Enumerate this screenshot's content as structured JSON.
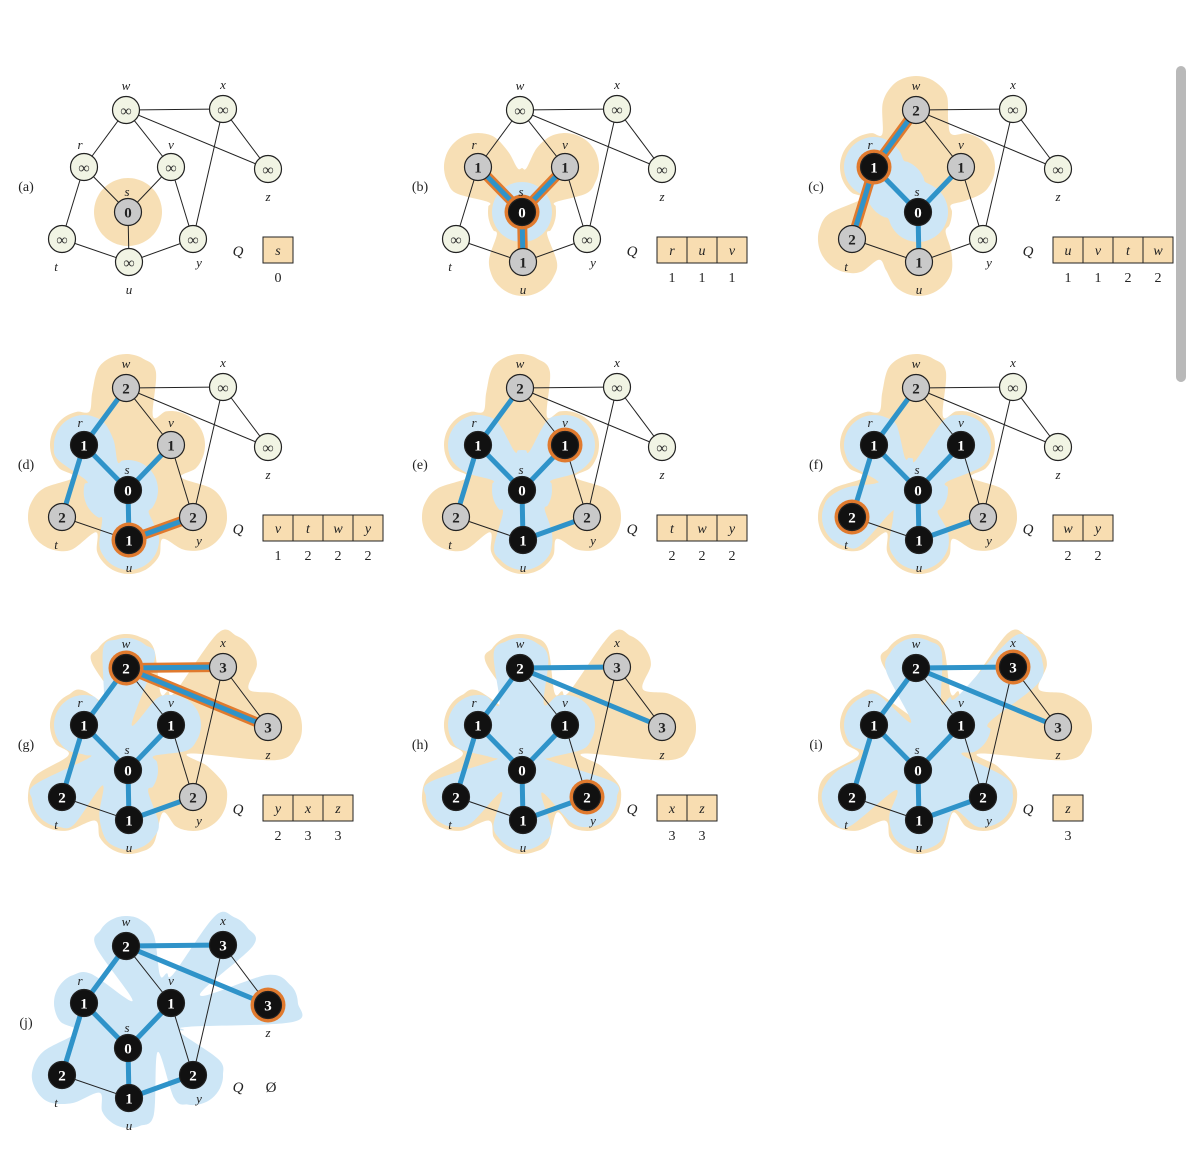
{
  "figure": {
    "queue_label": "Q",
    "empty_queue_symbol": "Ø",
    "colors": {
      "undiscovered_fill": "#f1f4e4",
      "frontier_fill": "#c9c9c9",
      "finished_fill": "#111111",
      "visited_region": "#cde6f6",
      "frontier_region": "#f7dfb5",
      "tree_edge": "#2f93c9",
      "current_edge": "#e07a2e",
      "queue_box": "#f8ddb1"
    },
    "vertices": [
      {
        "id": "w",
        "label": "w"
      },
      {
        "id": "x",
        "label": "x"
      },
      {
        "id": "r",
        "label": "r"
      },
      {
        "id": "v",
        "label": "v"
      },
      {
        "id": "z",
        "label": "z"
      },
      {
        "id": "s",
        "label": "s"
      },
      {
        "id": "t",
        "label": "t"
      },
      {
        "id": "u",
        "label": "u"
      },
      {
        "id": "y",
        "label": "y"
      }
    ],
    "edges": [
      [
        "w",
        "x"
      ],
      [
        "w",
        "r"
      ],
      [
        "w",
        "v"
      ],
      [
        "w",
        "z"
      ],
      [
        "x",
        "z"
      ],
      [
        "x",
        "y"
      ],
      [
        "r",
        "s"
      ],
      [
        "r",
        "t"
      ],
      [
        "v",
        "s"
      ],
      [
        "v",
        "y"
      ],
      [
        "s",
        "u"
      ],
      [
        "t",
        "u"
      ],
      [
        "u",
        "y"
      ]
    ],
    "panels": [
      {
        "label": "(a)",
        "d": {
          "s": "0"
        },
        "gray": [
          "s"
        ],
        "black": [],
        "current": [],
        "tree": [],
        "hl": [],
        "queue": {
          "items": [
            "s"
          ],
          "dists": [
            "0"
          ]
        }
      },
      {
        "label": "(b)",
        "d": {
          "s": "0",
          "r": "1",
          "v": "1",
          "u": "1"
        },
        "gray": [
          "r",
          "v",
          "u"
        ],
        "black": [
          "s"
        ],
        "current": [
          "s"
        ],
        "tree": [
          [
            "s",
            "r"
          ],
          [
            "s",
            "v"
          ],
          [
            "s",
            "u"
          ]
        ],
        "hl": [
          [
            "s",
            "r"
          ],
          [
            "s",
            "v"
          ],
          [
            "s",
            "u"
          ]
        ],
        "queue": {
          "items": [
            "r",
            "u",
            "v"
          ],
          "dists": [
            "1",
            "1",
            "1"
          ]
        }
      },
      {
        "label": "(c)",
        "d": {
          "s": "0",
          "r": "1",
          "v": "1",
          "u": "1",
          "w": "2",
          "t": "2"
        },
        "gray": [
          "v",
          "u",
          "w",
          "t"
        ],
        "black": [
          "s",
          "r"
        ],
        "current": [
          "r"
        ],
        "tree": [
          [
            "s",
            "r"
          ],
          [
            "s",
            "v"
          ],
          [
            "s",
            "u"
          ],
          [
            "r",
            "w"
          ],
          [
            "r",
            "t"
          ]
        ],
        "hl": [
          [
            "r",
            "w"
          ],
          [
            "r",
            "t"
          ]
        ],
        "queue": {
          "items": [
            "u",
            "v",
            "t",
            "w"
          ],
          "dists": [
            "1",
            "1",
            "2",
            "2"
          ]
        }
      },
      {
        "label": "(d)",
        "d": {
          "s": "0",
          "r": "1",
          "v": "1",
          "u": "1",
          "w": "2",
          "t": "2",
          "y": "2"
        },
        "gray": [
          "v",
          "w",
          "t",
          "y"
        ],
        "black": [
          "s",
          "r",
          "u"
        ],
        "current": [
          "u"
        ],
        "tree": [
          [
            "s",
            "r"
          ],
          [
            "s",
            "v"
          ],
          [
            "s",
            "u"
          ],
          [
            "r",
            "w"
          ],
          [
            "r",
            "t"
          ],
          [
            "u",
            "y"
          ]
        ],
        "hl": [
          [
            "u",
            "y"
          ]
        ],
        "queue": {
          "items": [
            "v",
            "t",
            "w",
            "y"
          ],
          "dists": [
            "1",
            "2",
            "2",
            "2"
          ]
        }
      },
      {
        "label": "(e)",
        "d": {
          "s": "0",
          "r": "1",
          "v": "1",
          "u": "1",
          "w": "2",
          "t": "2",
          "y": "2"
        },
        "gray": [
          "w",
          "t",
          "y"
        ],
        "black": [
          "s",
          "r",
          "u",
          "v"
        ],
        "current": [
          "v"
        ],
        "tree": [
          [
            "s",
            "r"
          ],
          [
            "s",
            "v"
          ],
          [
            "s",
            "u"
          ],
          [
            "r",
            "w"
          ],
          [
            "r",
            "t"
          ],
          [
            "u",
            "y"
          ]
        ],
        "hl": [],
        "queue": {
          "items": [
            "t",
            "w",
            "y"
          ],
          "dists": [
            "2",
            "2",
            "2"
          ]
        }
      },
      {
        "label": "(f)",
        "d": {
          "s": "0",
          "r": "1",
          "v": "1",
          "u": "1",
          "w": "2",
          "t": "2",
          "y": "2"
        },
        "gray": [
          "w",
          "y"
        ],
        "black": [
          "s",
          "r",
          "u",
          "v",
          "t"
        ],
        "current": [
          "t"
        ],
        "tree": [
          [
            "s",
            "r"
          ],
          [
            "s",
            "v"
          ],
          [
            "s",
            "u"
          ],
          [
            "r",
            "w"
          ],
          [
            "r",
            "t"
          ],
          [
            "u",
            "y"
          ]
        ],
        "hl": [],
        "queue": {
          "items": [
            "w",
            "y"
          ],
          "dists": [
            "2",
            "2"
          ]
        }
      },
      {
        "label": "(g)",
        "d": {
          "s": "0",
          "r": "1",
          "v": "1",
          "u": "1",
          "w": "2",
          "t": "2",
          "y": "2",
          "x": "3",
          "z": "3"
        },
        "gray": [
          "y",
          "x",
          "z"
        ],
        "black": [
          "s",
          "r",
          "u",
          "v",
          "t",
          "w"
        ],
        "current": [
          "w"
        ],
        "tree": [
          [
            "s",
            "r"
          ],
          [
            "s",
            "v"
          ],
          [
            "s",
            "u"
          ],
          [
            "r",
            "w"
          ],
          [
            "r",
            "t"
          ],
          [
            "u",
            "y"
          ],
          [
            "w",
            "x"
          ],
          [
            "w",
            "z"
          ]
        ],
        "hl": [
          [
            "w",
            "x"
          ],
          [
            "w",
            "z"
          ]
        ],
        "queue": {
          "items": [
            "y",
            "x",
            "z"
          ],
          "dists": [
            "2",
            "3",
            "3"
          ]
        }
      },
      {
        "label": "(h)",
        "d": {
          "s": "0",
          "r": "1",
          "v": "1",
          "u": "1",
          "w": "2",
          "t": "2",
          "y": "2",
          "x": "3",
          "z": "3"
        },
        "gray": [
          "x",
          "z"
        ],
        "black": [
          "s",
          "r",
          "u",
          "v",
          "t",
          "w",
          "y"
        ],
        "current": [
          "y"
        ],
        "tree": [
          [
            "s",
            "r"
          ],
          [
            "s",
            "v"
          ],
          [
            "s",
            "u"
          ],
          [
            "r",
            "w"
          ],
          [
            "r",
            "t"
          ],
          [
            "u",
            "y"
          ],
          [
            "w",
            "x"
          ],
          [
            "w",
            "z"
          ]
        ],
        "hl": [],
        "queue": {
          "items": [
            "x",
            "z"
          ],
          "dists": [
            "3",
            "3"
          ]
        }
      },
      {
        "label": "(i)",
        "d": {
          "s": "0",
          "r": "1",
          "v": "1",
          "u": "1",
          "w": "2",
          "t": "2",
          "y": "2",
          "x": "3",
          "z": "3"
        },
        "gray": [
          "z"
        ],
        "black": [
          "s",
          "r",
          "u",
          "v",
          "t",
          "w",
          "y",
          "x"
        ],
        "current": [
          "x"
        ],
        "tree": [
          [
            "s",
            "r"
          ],
          [
            "s",
            "v"
          ],
          [
            "s",
            "u"
          ],
          [
            "r",
            "w"
          ],
          [
            "r",
            "t"
          ],
          [
            "u",
            "y"
          ],
          [
            "w",
            "x"
          ],
          [
            "w",
            "z"
          ]
        ],
        "hl": [],
        "queue": {
          "items": [
            "z"
          ],
          "dists": [
            "3"
          ]
        }
      },
      {
        "label": "(j)",
        "d": {
          "s": "0",
          "r": "1",
          "v": "1",
          "u": "1",
          "w": "2",
          "t": "2",
          "y": "2",
          "x": "3",
          "z": "3"
        },
        "gray": [],
        "black": [
          "s",
          "r",
          "u",
          "v",
          "t",
          "w",
          "y",
          "x",
          "z"
        ],
        "current": [
          "z"
        ],
        "tree": [
          [
            "s",
            "r"
          ],
          [
            "s",
            "v"
          ],
          [
            "s",
            "u"
          ],
          [
            "r",
            "w"
          ],
          [
            "r",
            "t"
          ],
          [
            "u",
            "y"
          ],
          [
            "w",
            "x"
          ],
          [
            "w",
            "z"
          ]
        ],
        "hl": [],
        "queue": {
          "items": [],
          "dists": []
        }
      }
    ]
  }
}
